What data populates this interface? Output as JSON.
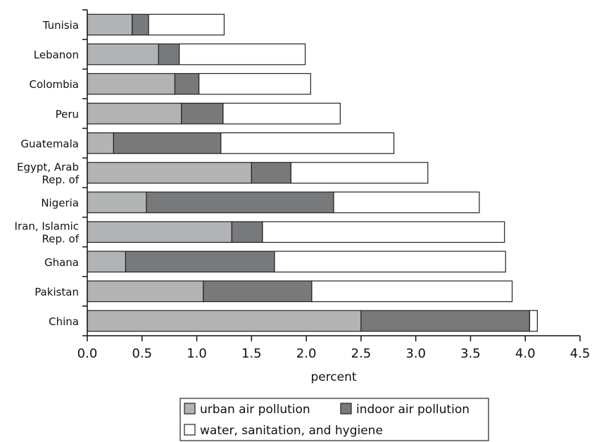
{
  "chart_data": {
    "type": "bar",
    "orientation": "horizontal",
    "stacked": true,
    "categories": [
      "Tunisia",
      "Lebanon",
      "Colombia",
      "Peru",
      "Guatemala",
      "Egypt, Arab Rep. of",
      "Nigeria",
      "Iran, Islamic Rep. of",
      "Ghana",
      "Pakistan",
      "China"
    ],
    "series": [
      {
        "name": "urban air pollution",
        "color": "#b1b3b4",
        "values": [
          0.41,
          0.65,
          0.8,
          0.86,
          0.24,
          1.5,
          0.54,
          1.32,
          0.35,
          1.06,
          2.5
        ]
      },
      {
        "name": "indoor air pollution",
        "color": "#78797b",
        "values": [
          0.15,
          0.19,
          0.22,
          0.38,
          0.98,
          0.36,
          1.71,
          0.28,
          1.36,
          0.99,
          1.54
        ]
      },
      {
        "name": "water, sanitation, and hygiene",
        "color": "#ffffff",
        "values": [
          0.69,
          1.15,
          1.02,
          1.07,
          1.58,
          1.25,
          1.33,
          2.21,
          2.11,
          1.83,
          0.07
        ]
      }
    ],
    "xlabel": "percent",
    "xlim": [
      0,
      4.5
    ],
    "xticks": [
      "0.0",
      "0.5",
      "1.0",
      "1.5",
      "2.0",
      "2.5",
      "3.0",
      "3.5",
      "4.0",
      "4.5"
    ],
    "grid": false,
    "legend_position": "bottom"
  }
}
